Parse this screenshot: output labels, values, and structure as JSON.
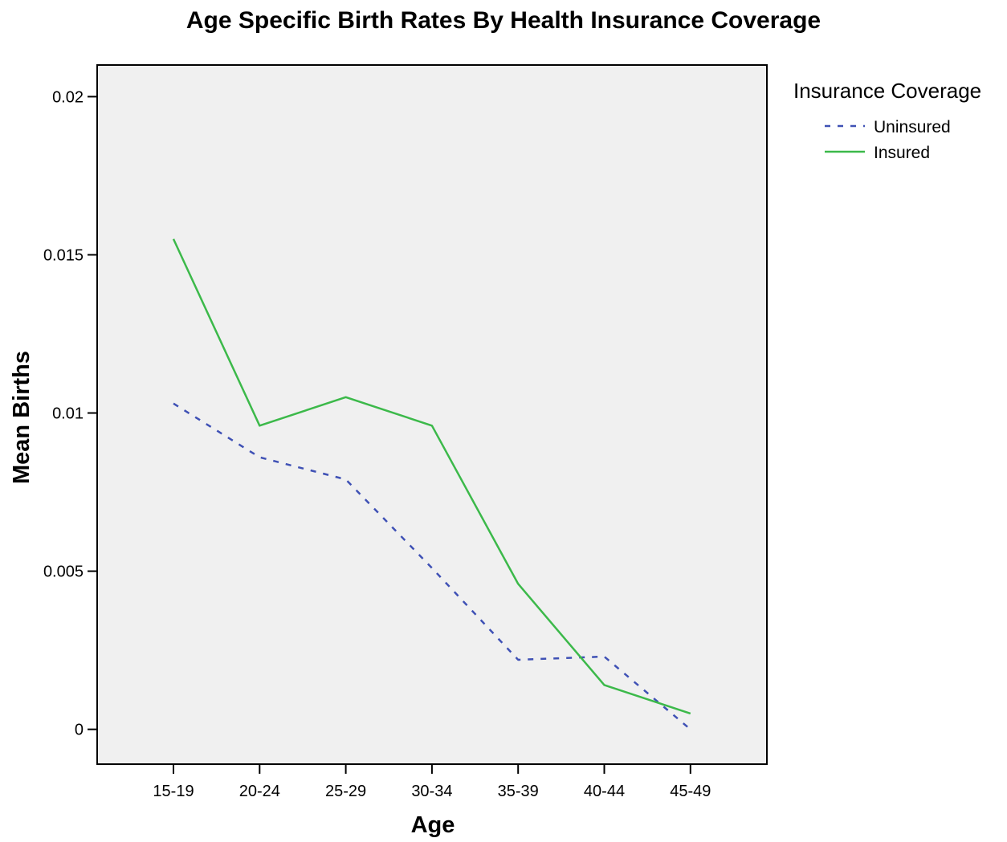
{
  "chart_data": {
    "type": "line",
    "title": "Age Specific Birth Rates By Health Insurance Coverage",
    "xlabel": "Age",
    "ylabel": "Mean Births",
    "categories": [
      "15-19",
      "20-24",
      "25-29",
      "30-34",
      "35-39",
      "40-44",
      "45-49"
    ],
    "ylim": [
      -0.0011,
      0.021
    ],
    "yticks": [
      0,
      0.005,
      0.01,
      0.015,
      0.02
    ],
    "ytick_labels": [
      "0",
      "0.005",
      "0.01",
      "0.015",
      "0.02"
    ],
    "grid": false,
    "legend": {
      "title": "Insurance Coverage",
      "position": "right-top"
    },
    "series": [
      {
        "name": "Uninsured",
        "values": [
          0.0103,
          0.0086,
          0.0079,
          0.0051,
          0.0022,
          0.0023,
          0.0
        ],
        "color": "#3f51b5",
        "style": "dashed"
      },
      {
        "name": "Insured",
        "values": [
          0.0155,
          0.0096,
          0.0105,
          0.0096,
          0.0046,
          0.0014,
          0.0005
        ],
        "color": "#3cb94a",
        "style": "solid"
      }
    ],
    "plot_background": "#f0f0f0"
  }
}
